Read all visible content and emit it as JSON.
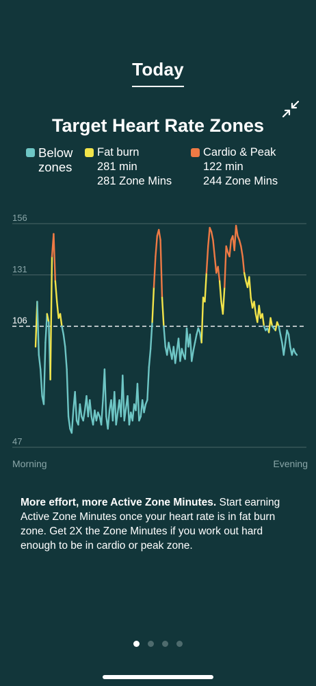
{
  "header": {
    "tab_label": "Today"
  },
  "colors": {
    "background": "#12363a",
    "below": "#6ec6c5",
    "fat_burn": "#f2e44a",
    "cardio_peak": "#ee7a45",
    "grid": "#4a6567"
  },
  "icons": {
    "collapse": "collapse-arrows-icon"
  },
  "chart_data": {
    "type": "line",
    "title": "Target Heart Rate Zones",
    "legend": [
      {
        "name": "Below",
        "name2": "zones",
        "minutes": "",
        "zone_mins": "",
        "color": "#6ec6c5"
      },
      {
        "name": "Fat burn",
        "minutes": "281 min",
        "zone_mins": "281 Zone Mins",
        "color": "#f2e44a"
      },
      {
        "name": "Cardio & Peak",
        "minutes": "122 min",
        "zone_mins": "244 Zone Mins",
        "color": "#ee7a45"
      }
    ],
    "y_ticks": [
      156,
      131,
      106,
      47
    ],
    "ylim": [
      47,
      156
    ],
    "threshold": 106,
    "fat_burn_min": 106,
    "cardio_min": 131,
    "x_labels": [
      "Morning",
      "Evening"
    ],
    "heart_rate": [
      96,
      118,
      92,
      85,
      72,
      68,
      98,
      112,
      108,
      80,
      140,
      151,
      128,
      118,
      110,
      112,
      106,
      102,
      96,
      85,
      62,
      56,
      54,
      65,
      74,
      60,
      58,
      68,
      62,
      60,
      65,
      72,
      62,
      70,
      62,
      58,
      65,
      60,
      64,
      62,
      58,
      70,
      85,
      62,
      56,
      65,
      70,
      60,
      74,
      58,
      64,
      70,
      62,
      82,
      60,
      66,
      72,
      58,
      64,
      60,
      68,
      65,
      78,
      60,
      62,
      70,
      64,
      68,
      70,
      86,
      95,
      108,
      125,
      140,
      150,
      153,
      148,
      120,
      106,
      96,
      92,
      98,
      94,
      90,
      96,
      88,
      94,
      100,
      89,
      95,
      92,
      90,
      105,
      96,
      102,
      89,
      94,
      98,
      102,
      105,
      103,
      98,
      120,
      118,
      132,
      145,
      154,
      152,
      148,
      140,
      132,
      135,
      128,
      118,
      112,
      125,
      145,
      142,
      140,
      148,
      150,
      143,
      155,
      150,
      148,
      145,
      140,
      132,
      128,
      125,
      130,
      120,
      115,
      118,
      112,
      108,
      116,
      110,
      112,
      106,
      104,
      105,
      103,
      110,
      106,
      105,
      104,
      108,
      106,
      102,
      98,
      92,
      98,
      104,
      102,
      96,
      92,
      95,
      93,
      92
    ]
  },
  "info": {
    "bold_text": "More effort, more Active Zone Minutes.",
    "body_text": " Start earning Active Zone Minutes once your heart rate is in fat burn zone. Get 2X the Zone Minutes if you work out hard enough to be in cardio or peak zone."
  },
  "pager": {
    "pages": 4,
    "active": 0
  }
}
